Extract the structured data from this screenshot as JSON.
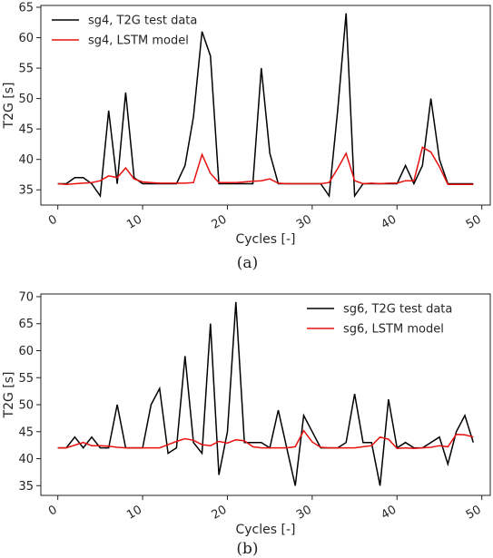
{
  "chart_data": [
    {
      "type": "line",
      "title": "",
      "xlabel": "Cycles [-]",
      "ylabel": "T2G [s]",
      "xlim": [
        -2,
        51
      ],
      "ylim": [
        32.5,
        65.3
      ],
      "xticks": [
        0,
        10,
        20,
        30,
        40,
        50
      ],
      "yticks": [
        35,
        40,
        45,
        50,
        55,
        60,
        65
      ],
      "legend_position": "top-left",
      "caption": "(a)",
      "x": [
        0,
        1,
        2,
        3,
        4,
        5,
        6,
        7,
        8,
        9,
        10,
        11,
        12,
        13,
        14,
        15,
        16,
        17,
        18,
        19,
        20,
        21,
        22,
        23,
        24,
        25,
        26,
        27,
        28,
        29,
        30,
        31,
        32,
        33,
        34,
        35,
        36,
        37,
        38,
        39,
        40,
        41,
        42,
        43,
        44,
        45,
        46,
        47,
        48,
        49
      ],
      "series": [
        {
          "name": "sg4, T2G test data",
          "color": "#000000",
          "values": [
            36,
            36,
            37,
            37,
            36,
            34,
            48,
            36,
            51,
            37,
            36,
            36,
            36,
            36,
            36,
            39,
            47,
            61,
            57,
            36,
            36,
            36,
            36,
            36,
            55,
            41,
            36,
            36,
            36,
            36,
            36,
            36,
            34,
            48,
            64,
            34,
            36,
            36,
            36,
            36,
            36,
            39,
            36,
            39,
            50,
            40,
            36,
            36,
            36,
            36
          ]
        },
        {
          "name": "sg4, LSTM model",
          "color": "#e8110f",
          "values": [
            36,
            35.9,
            36,
            36.1,
            36.2,
            36.5,
            37.3,
            37,
            38.6,
            36.8,
            36.3,
            36.2,
            36.1,
            36.1,
            36.1,
            36.1,
            36.2,
            40.8,
            37.7,
            36.2,
            36.2,
            36.2,
            36.3,
            36.4,
            36.5,
            36.8,
            36.1,
            36,
            36,
            36,
            36,
            36,
            36.2,
            38.5,
            41,
            36.5,
            36,
            36.1,
            36,
            36.1,
            36.1,
            36.5,
            36.5,
            42,
            41.2,
            38.8,
            35.9,
            35.9,
            35.9,
            35.9
          ]
        }
      ]
    },
    {
      "type": "line",
      "title": "",
      "xlabel": "Cycles [-]",
      "ylabel": "T2G [s]",
      "xlim": [
        -2,
        51
      ],
      "ylim": [
        33.2,
        70.5
      ],
      "xticks": [
        0,
        10,
        20,
        30,
        40,
        50
      ],
      "yticks": [
        35,
        40,
        45,
        50,
        55,
        60,
        65,
        70
      ],
      "legend_position": "top-right",
      "caption": "(b)",
      "x": [
        0,
        1,
        2,
        3,
        4,
        5,
        6,
        7,
        8,
        9,
        10,
        11,
        12,
        13,
        14,
        15,
        16,
        17,
        18,
        19,
        20,
        21,
        22,
        23,
        24,
        25,
        26,
        27,
        28,
        29,
        30,
        31,
        32,
        33,
        34,
        35,
        36,
        37,
        38,
        39,
        40,
        41,
        42,
        43,
        44,
        45,
        46,
        47,
        48,
        49
      ],
      "series": [
        {
          "name": "sg6, T2G test data",
          "color": "#000000",
          "values": [
            42,
            42,
            44,
            42,
            44,
            42,
            42,
            50,
            42,
            42,
            42,
            50,
            53,
            41,
            42,
            59,
            43,
            41,
            65,
            37,
            45,
            69,
            43,
            43,
            43,
            42,
            49,
            42,
            35,
            48,
            45,
            42,
            42,
            42,
            43,
            52,
            43,
            43,
            35,
            51,
            42,
            43,
            42,
            42,
            43,
            44,
            39,
            45,
            48,
            43
          ]
        },
        {
          "name": "sg6, LSTM model",
          "color": "#e8110f",
          "values": [
            42,
            42,
            42.5,
            43,
            42.4,
            42.4,
            42.3,
            42.1,
            42,
            42,
            42,
            42,
            42,
            42.6,
            43.2,
            43.7,
            43.4,
            42.6,
            42.4,
            43.2,
            42.9,
            43.5,
            43.3,
            42.2,
            42,
            42,
            42,
            42,
            42.2,
            45.2,
            43.1,
            42.1,
            42,
            42,
            42,
            42,
            42.2,
            42.4,
            44,
            43.6,
            41.9,
            42,
            41.9,
            42,
            42.1,
            42.4,
            42.2,
            44.5,
            44.4,
            44
          ]
        }
      ]
    }
  ]
}
